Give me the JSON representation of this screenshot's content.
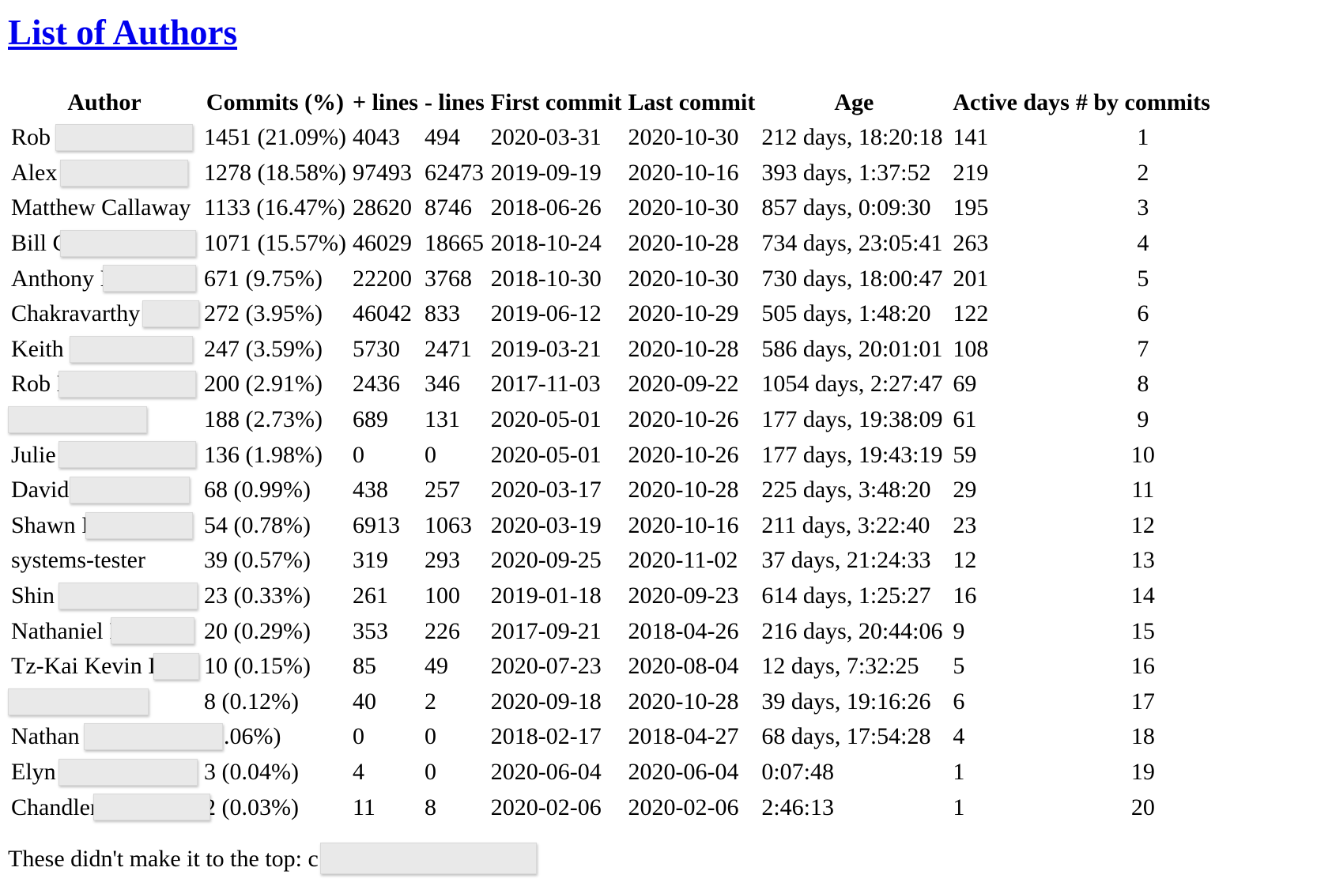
{
  "title": "List of Authors",
  "table": {
    "headers": [
      "Author",
      "Commits (%)",
      "+ lines",
      "- lines",
      "First commit",
      "Last commit",
      "Age",
      "Active days",
      "# by commits"
    ],
    "rows": [
      {
        "author": "Rob I",
        "commits": "1451 (21.09%)",
        "plus": "4043",
        "minus": "494",
        "first": "2020-03-31",
        "last": "2020-10-30",
        "age": "212 days, 18:20:18",
        "active": "141",
        "rank": "1"
      },
      {
        "author": "Alex",
        "commits": "1278 (18.58%)",
        "plus": "97493",
        "minus": "62473",
        "first": "2019-09-19",
        "last": "2020-10-16",
        "age": "393 days, 1:37:52",
        "active": "219",
        "rank": "2"
      },
      {
        "author": "Matthew Callaway",
        "commits": "1133 (16.47%)",
        "plus": "28620",
        "minus": "8746",
        "first": "2018-06-26",
        "last": "2020-10-30",
        "age": "857 days, 0:09:30",
        "active": "195",
        "rank": "3"
      },
      {
        "author": "Bill C",
        "commits": "1071 (15.57%)",
        "plus": "46029",
        "minus": "18665",
        "first": "2018-10-24",
        "last": "2020-10-28",
        "age": "734 days, 23:05:41",
        "active": "263",
        "rank": "4"
      },
      {
        "author": "Anthony I",
        "commits": "671 (9.75%)",
        "plus": "22200",
        "minus": "3768",
        "first": "2018-10-30",
        "last": "2020-10-30",
        "age": "730 days, 18:00:47",
        "active": "201",
        "rank": "5"
      },
      {
        "author": "Chakravarthy",
        "commits": "272 (3.95%)",
        "plus": "46042",
        "minus": "833",
        "first": "2019-06-12",
        "last": "2020-10-29",
        "age": "505 days, 1:48:20",
        "active": "122",
        "rank": "6"
      },
      {
        "author": "Keith I",
        "commits": "247 (3.59%)",
        "plus": "5730",
        "minus": "2471",
        "first": "2019-03-21",
        "last": "2020-10-28",
        "age": "586 days, 20:01:01",
        "active": "108",
        "rank": "7"
      },
      {
        "author": "Rob I",
        "commits": "200 (2.91%)",
        "plus": "2436",
        "minus": "346",
        "first": "2017-11-03",
        "last": "2020-09-22",
        "age": "1054 days, 2:27:47",
        "active": "69",
        "rank": "8"
      },
      {
        "author": "",
        "commits": "188 (2.73%)",
        "plus": "689",
        "minus": "131",
        "first": "2020-05-01",
        "last": "2020-10-26",
        "age": "177 days, 19:38:09",
        "active": "61",
        "rank": "9"
      },
      {
        "author": "Julie",
        "commits": "136 (1.98%)",
        "plus": "0",
        "minus": "0",
        "first": "2020-05-01",
        "last": "2020-10-26",
        "age": "177 days, 19:43:19",
        "active": "59",
        "rank": "10"
      },
      {
        "author": "David",
        "commits": "68 (0.99%)",
        "plus": "438",
        "minus": "257",
        "first": "2020-03-17",
        "last": "2020-10-28",
        "age": "225 days, 3:48:20",
        "active": "29",
        "rank": "11"
      },
      {
        "author": "Shawn I",
        "commits": "54 (0.78%)",
        "plus": "6913",
        "minus": "1063",
        "first": "2020-03-19",
        "last": "2020-10-16",
        "age": "211 days, 3:22:40",
        "active": "23",
        "rank": "12"
      },
      {
        "author": "systems-tester",
        "commits": "39 (0.57%)",
        "plus": "319",
        "minus": "293",
        "first": "2020-09-25",
        "last": "2020-11-02",
        "age": "37 days, 21:24:33",
        "active": "12",
        "rank": "13"
      },
      {
        "author": "Shin",
        "commits": "23 (0.33%)",
        "plus": "261",
        "minus": "100",
        "first": "2019-01-18",
        "last": "2020-09-23",
        "age": "614 days, 1:25:27",
        "active": "16",
        "rank": "14"
      },
      {
        "author": "Nathaniel I",
        "commits": "20 (0.29%)",
        "plus": "353",
        "minus": "226",
        "first": "2017-09-21",
        "last": "2018-04-26",
        "age": "216 days, 20:44:06",
        "active": "9",
        "rank": "15"
      },
      {
        "author": "Tz-Kai Kevin I",
        "commits": "10 (0.15%)",
        "plus": "85",
        "minus": "49",
        "first": "2020-07-23",
        "last": "2020-08-04",
        "age": "12 days, 7:32:25",
        "active": "5",
        "rank": "16"
      },
      {
        "author": "",
        "commits": "8 (0.12%)",
        "plus": "40",
        "minus": "2",
        "first": "2020-09-18",
        "last": "2020-10-28",
        "age": "39 days, 19:16:26",
        "active": "6",
        "rank": "17"
      },
      {
        "author": "Nathan",
        "commits": "(0.06%)",
        "plus": "0",
        "minus": "0",
        "first": "2018-02-17",
        "last": "2018-04-27",
        "age": "68 days, 17:54:28",
        "active": "4",
        "rank": "18"
      },
      {
        "author": "Elyn",
        "commits": "3 (0.04%)",
        "plus": "4",
        "minus": "0",
        "first": "2020-06-04",
        "last": "2020-06-04",
        "age": "0:07:48",
        "active": "1",
        "rank": "19"
      },
      {
        "author": "Chandler",
        "commits": "2 (0.03%)",
        "plus": "11",
        "minus": "8",
        "first": "2020-02-06",
        "last": "2020-02-06",
        "age": "2:46:13",
        "active": "1",
        "rank": "20"
      }
    ]
  },
  "footer": {
    "text": "These didn't make it to the top: c"
  }
}
